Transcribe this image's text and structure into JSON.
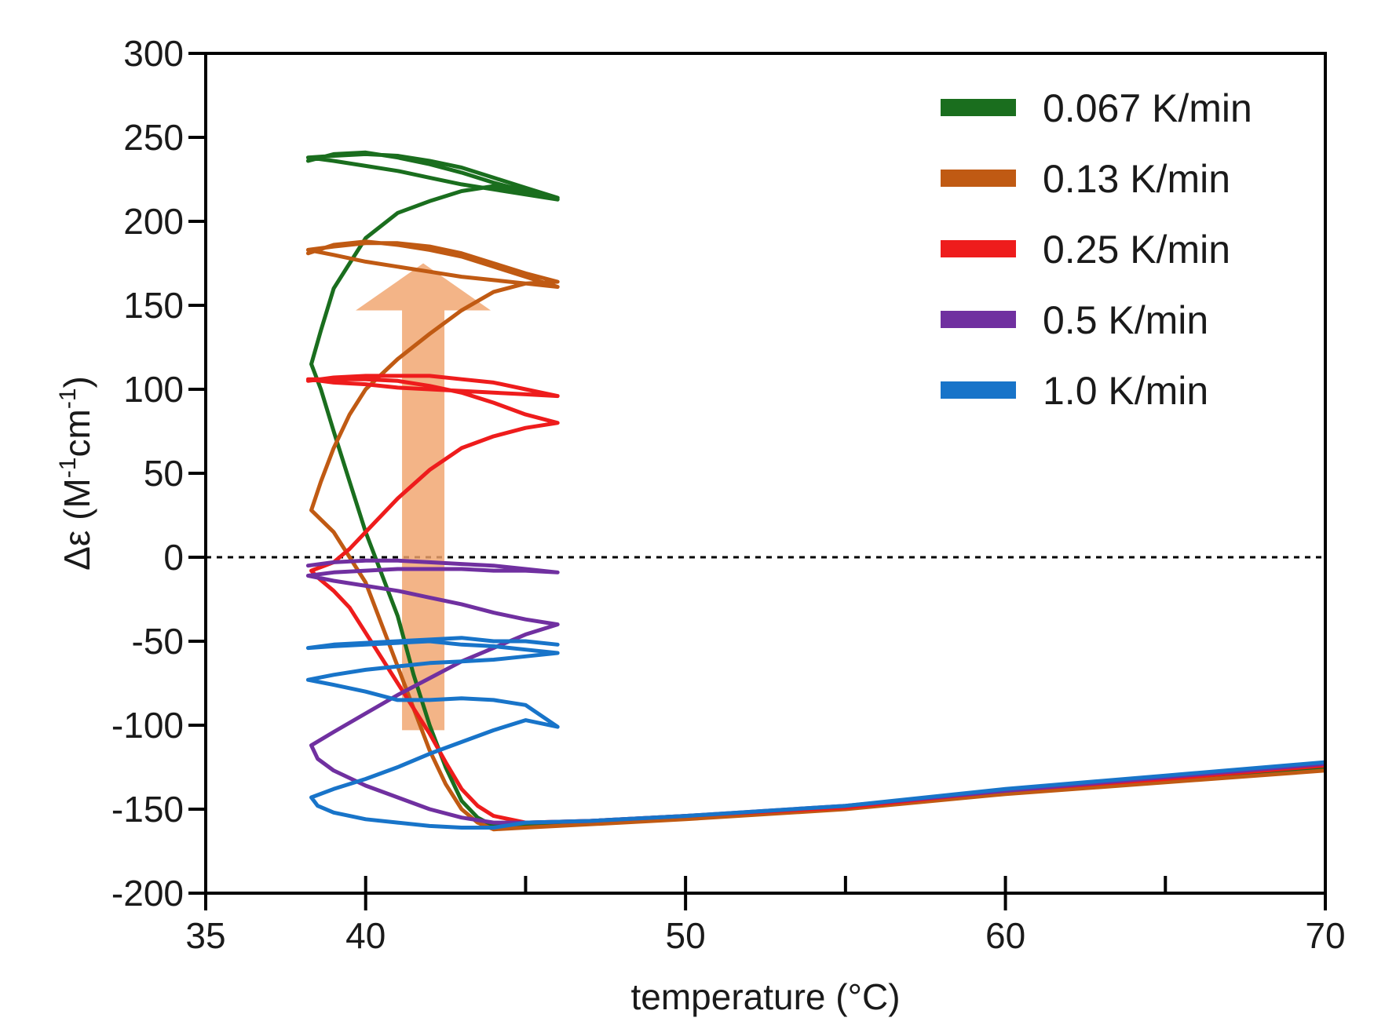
{
  "chart_data": {
    "type": "line",
    "xlabel": "temperature (°C)",
    "ylabel": {
      "symbol": "Δε",
      "unit_prefix": " (M",
      "exp1": "-1",
      "unit_mid": "cm",
      "exp2": "-1",
      "unit_suffix": ")"
    },
    "xlim": [
      35,
      70
    ],
    "ylim": [
      -200,
      300
    ],
    "x_ticks": [
      35,
      40,
      50,
      60,
      70
    ],
    "x_minor_ticks": [
      40,
      45,
      50,
      55,
      60,
      65
    ],
    "y_ticks": [
      300,
      250,
      200,
      150,
      100,
      50,
      0,
      -50,
      -100,
      -150,
      -200
    ],
    "zero_line": {
      "y": 0,
      "style": "dotted"
    },
    "grid": false,
    "legend_position": "top-right",
    "arrow": {
      "x": 41.8,
      "y_from": -103,
      "y_to": 175,
      "color": "#f0a36c",
      "meaning": "increasing with slower scan rate"
    },
    "series": [
      {
        "name": "0.067 K/min",
        "color": "#1a6e1e",
        "points": [
          [
            70,
            -125
          ],
          [
            65,
            -133
          ],
          [
            60,
            -140
          ],
          [
            55,
            -149
          ],
          [
            50,
            -155
          ],
          [
            47,
            -158
          ],
          [
            45,
            -160
          ],
          [
            44,
            -160
          ],
          [
            43.5,
            -155
          ],
          [
            43,
            -145
          ],
          [
            42.5,
            -125
          ],
          [
            42,
            -100
          ],
          [
            41.5,
            -70
          ],
          [
            41,
            -35
          ],
          [
            40.5,
            -10
          ],
          [
            40,
            15
          ],
          [
            39.5,
            45
          ],
          [
            39,
            75
          ],
          [
            38.6,
            100
          ],
          [
            38.3,
            115
          ],
          [
            38.6,
            135
          ],
          [
            39,
            160
          ],
          [
            39.5,
            175
          ],
          [
            40,
            190
          ],
          [
            41,
            205
          ],
          [
            42,
            212
          ],
          [
            43,
            218
          ],
          [
            44,
            221
          ],
          [
            45,
            218
          ],
          [
            46,
            214
          ],
          [
            45,
            220
          ],
          [
            44,
            226
          ],
          [
            43,
            232
          ],
          [
            42,
            236
          ],
          [
            41,
            239
          ],
          [
            40,
            240
          ],
          [
            39,
            239
          ],
          [
            38.2,
            238
          ],
          [
            39,
            236
          ],
          [
            40,
            233
          ],
          [
            41,
            230
          ],
          [
            42,
            226
          ],
          [
            43,
            222
          ],
          [
            44,
            219
          ],
          [
            45,
            216
          ],
          [
            46,
            213
          ],
          [
            45,
            218
          ],
          [
            44,
            223
          ],
          [
            43,
            229
          ],
          [
            42,
            234
          ],
          [
            41,
            238
          ],
          [
            40,
            241
          ],
          [
            39,
            240
          ],
          [
            38.2,
            236
          ]
        ]
      },
      {
        "name": "0.13 K/min",
        "color": "#c05a13",
        "points": [
          [
            70,
            -127
          ],
          [
            65,
            -134
          ],
          [
            60,
            -141
          ],
          [
            55,
            -150
          ],
          [
            50,
            -156
          ],
          [
            47,
            -159
          ],
          [
            45,
            -161
          ],
          [
            44,
            -162
          ],
          [
            43.5,
            -158
          ],
          [
            43,
            -150
          ],
          [
            42.5,
            -135
          ],
          [
            42,
            -115
          ],
          [
            41.5,
            -90
          ],
          [
            41,
            -65
          ],
          [
            40.5,
            -40
          ],
          [
            40,
            -15
          ],
          [
            39.5,
            0
          ],
          [
            39,
            15
          ],
          [
            38.3,
            28
          ],
          [
            38.6,
            45
          ],
          [
            39,
            65
          ],
          [
            39.5,
            85
          ],
          [
            40,
            100
          ],
          [
            41,
            118
          ],
          [
            42,
            133
          ],
          [
            43,
            147
          ],
          [
            44,
            158
          ],
          [
            45,
            163
          ],
          [
            46,
            164
          ],
          [
            45,
            169
          ],
          [
            44,
            175
          ],
          [
            43,
            181
          ],
          [
            42,
            185
          ],
          [
            41,
            187
          ],
          [
            40,
            187
          ],
          [
            39,
            185
          ],
          [
            38.2,
            183
          ],
          [
            39,
            180
          ],
          [
            40,
            176
          ],
          [
            41,
            173
          ],
          [
            42,
            170
          ],
          [
            43,
            167
          ],
          [
            44,
            165
          ],
          [
            45,
            163
          ],
          [
            46,
            161
          ],
          [
            45,
            167
          ],
          [
            44,
            173
          ],
          [
            43,
            179
          ],
          [
            42,
            183
          ],
          [
            41,
            186
          ],
          [
            40,
            188
          ],
          [
            39,
            186
          ],
          [
            38.2,
            181
          ]
        ]
      },
      {
        "name": "0.25 K/min",
        "color": "#ee1c1c",
        "points": [
          [
            70,
            -124
          ],
          [
            65,
            -132
          ],
          [
            60,
            -139
          ],
          [
            55,
            -149
          ],
          [
            50,
            -154
          ],
          [
            47,
            -157
          ],
          [
            45,
            -158
          ],
          [
            44,
            -154
          ],
          [
            43.5,
            -148
          ],
          [
            43,
            -138
          ],
          [
            42.5,
            -122
          ],
          [
            42,
            -105
          ],
          [
            41.5,
            -90
          ],
          [
            41,
            -75
          ],
          [
            40.5,
            -60
          ],
          [
            40,
            -45
          ],
          [
            39.5,
            -30
          ],
          [
            39,
            -20
          ],
          [
            38.5,
            -12
          ],
          [
            38.3,
            -8
          ],
          [
            39,
            -3
          ],
          [
            39.5,
            5
          ],
          [
            40,
            15
          ],
          [
            41,
            35
          ],
          [
            42,
            52
          ],
          [
            43,
            65
          ],
          [
            44,
            72
          ],
          [
            45,
            77
          ],
          [
            46,
            80
          ],
          [
            45,
            85
          ],
          [
            44,
            92
          ],
          [
            43,
            98
          ],
          [
            42,
            102
          ],
          [
            41,
            105
          ],
          [
            40,
            106
          ],
          [
            39,
            106
          ],
          [
            38.2,
            106
          ],
          [
            39,
            104
          ],
          [
            40,
            103
          ],
          [
            41,
            101
          ],
          [
            42,
            100
          ],
          [
            43,
            99
          ],
          [
            44,
            98
          ],
          [
            45,
            97
          ],
          [
            46,
            96
          ],
          [
            45,
            100
          ],
          [
            44,
            104
          ],
          [
            43,
            106
          ],
          [
            42,
            108
          ],
          [
            41,
            108
          ],
          [
            40,
            108
          ],
          [
            39,
            107
          ],
          [
            38.2,
            105
          ]
        ]
      },
      {
        "name": "0.5 K/min",
        "color": "#7030a0",
        "points": [
          [
            70,
            -123
          ],
          [
            65,
            -131
          ],
          [
            60,
            -139
          ],
          [
            55,
            -148
          ],
          [
            50,
            -154
          ],
          [
            47,
            -157
          ],
          [
            45,
            -158
          ],
          [
            44,
            -158
          ],
          [
            43,
            -155
          ],
          [
            42,
            -150
          ],
          [
            41,
            -143
          ],
          [
            40,
            -136
          ],
          [
            39,
            -127
          ],
          [
            38.5,
            -120
          ],
          [
            38.3,
            -112
          ],
          [
            39,
            -104
          ],
          [
            40,
            -93
          ],
          [
            41,
            -82
          ],
          [
            42,
            -72
          ],
          [
            43,
            -62
          ],
          [
            44,
            -54
          ],
          [
            45,
            -46
          ],
          [
            46,
            -40
          ],
          [
            45,
            -37
          ],
          [
            44,
            -33
          ],
          [
            43,
            -28
          ],
          [
            42,
            -24
          ],
          [
            41,
            -20
          ],
          [
            40,
            -17
          ],
          [
            39,
            -14
          ],
          [
            38.2,
            -11
          ],
          [
            39,
            -9
          ],
          [
            40,
            -8
          ],
          [
            41,
            -7
          ],
          [
            42,
            -7
          ],
          [
            43,
            -7
          ],
          [
            44,
            -8
          ],
          [
            45,
            -8
          ],
          [
            46,
            -9
          ],
          [
            45,
            -7
          ],
          [
            44,
            -5
          ],
          [
            43,
            -4
          ],
          [
            42,
            -3
          ],
          [
            41,
            -2
          ],
          [
            40,
            -2
          ],
          [
            39,
            -3
          ],
          [
            38.2,
            -5
          ]
        ]
      },
      {
        "name": "1.0 K/min",
        "color": "#1874c9",
        "points": [
          [
            70,
            -122
          ],
          [
            65,
            -130
          ],
          [
            60,
            -138
          ],
          [
            55,
            -148
          ],
          [
            50,
            -154
          ],
          [
            47,
            -157
          ],
          [
            45,
            -158
          ],
          [
            44,
            -161
          ],
          [
            43,
            -161
          ],
          [
            42,
            -160
          ],
          [
            41,
            -158
          ],
          [
            40,
            -156
          ],
          [
            39,
            -152
          ],
          [
            38.5,
            -148
          ],
          [
            38.3,
            -143
          ],
          [
            39,
            -138
          ],
          [
            40,
            -132
          ],
          [
            41,
            -125
          ],
          [
            42,
            -117
          ],
          [
            43,
            -110
          ],
          [
            44,
            -103
          ],
          [
            45,
            -97
          ],
          [
            46,
            -101
          ],
          [
            45,
            -88
          ],
          [
            44,
            -85
          ],
          [
            43,
            -84
          ],
          [
            42,
            -85
          ],
          [
            41,
            -85
          ],
          [
            40,
            -80
          ],
          [
            39,
            -76
          ],
          [
            38.2,
            -73
          ],
          [
            39,
            -70
          ],
          [
            40,
            -67
          ],
          [
            41,
            -65
          ],
          [
            42,
            -63
          ],
          [
            43,
            -62
          ],
          [
            44,
            -61
          ],
          [
            45,
            -59
          ],
          [
            46,
            -57
          ],
          [
            45,
            -55
          ],
          [
            44,
            -53
          ],
          [
            43,
            -52
          ],
          [
            42,
            -50
          ],
          [
            41,
            -51
          ],
          [
            40,
            -52
          ],
          [
            39,
            -53
          ],
          [
            38.2,
            -54
          ],
          [
            39,
            -52
          ],
          [
            40,
            -51
          ],
          [
            41,
            -50
          ],
          [
            42,
            -49
          ],
          [
            43,
            -48
          ],
          [
            44,
            -50
          ],
          [
            45,
            -50
          ],
          [
            46,
            -52
          ]
        ]
      }
    ]
  }
}
